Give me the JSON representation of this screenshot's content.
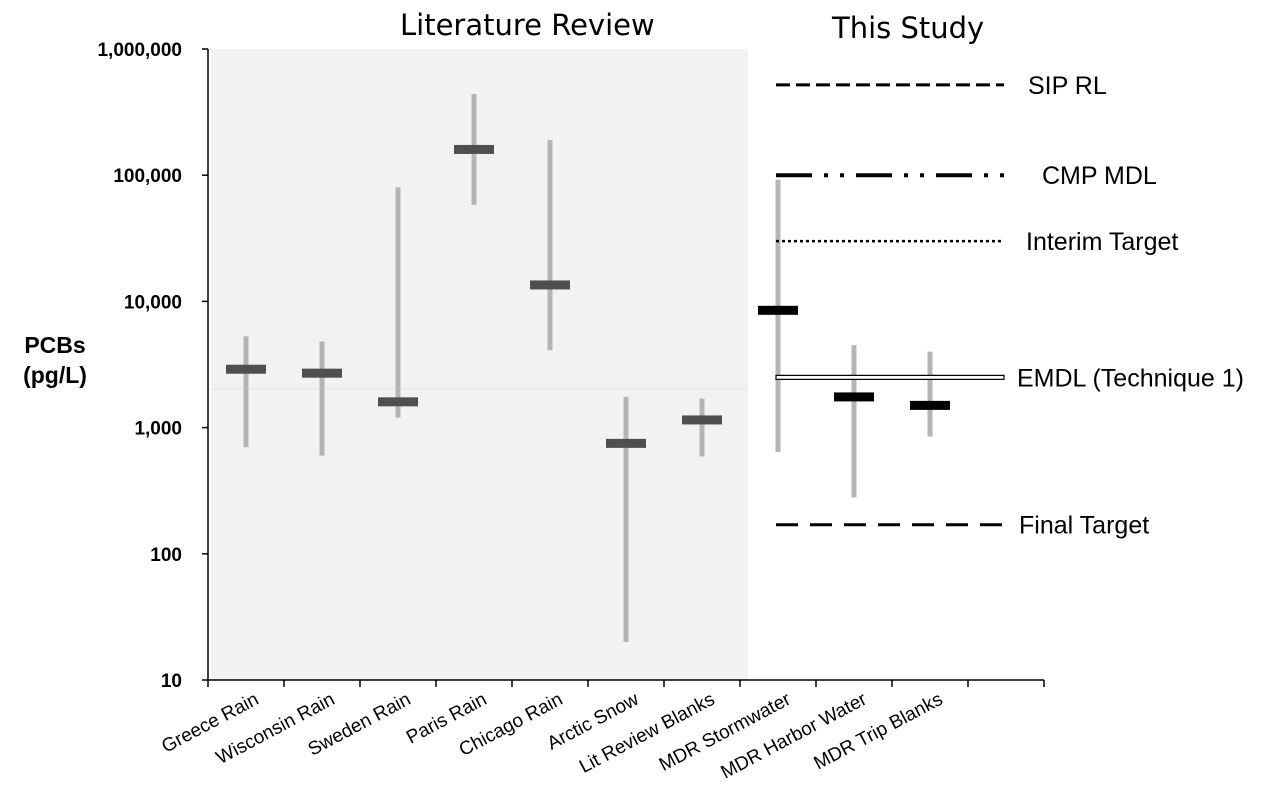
{
  "chart_data": {
    "type": "range",
    "scale": "log",
    "ylim": [
      10,
      1000000
    ],
    "yticks": [
      "10",
      "100",
      "1,000",
      "10,000",
      "100,000",
      "1,000,000"
    ],
    "ylabel_line1": "PCBs",
    "ylabel_line2": "(pg/L)",
    "section_titles": [
      "Literature Review",
      "This Study"
    ],
    "shaded_section": "Literature Review",
    "categories": [
      "Greece Rain",
      "Wisconsin Rain",
      "Sweden Rain",
      "Paris Rain",
      "Chicago Rain",
      "Arctic Snow",
      "Lit Review Blanks",
      "MDR Stormwater",
      "MDR Harbor Water",
      "MDR Trip Blanks"
    ],
    "series": [
      {
        "category": "Greece Rain",
        "min": 700,
        "median": 2900,
        "max": 5300,
        "group": "Literature Review"
      },
      {
        "category": "Wisconsin Rain",
        "min": 600,
        "median": 2700,
        "max": 4800,
        "group": "Literature Review"
      },
      {
        "category": "Sweden Rain",
        "min": 1200,
        "median": 1600,
        "max": 80000,
        "group": "Literature Review"
      },
      {
        "category": "Paris Rain",
        "min": 58000,
        "median": 160000,
        "max": 440000,
        "group": "Literature Review"
      },
      {
        "category": "Chicago Rain",
        "min": 4100,
        "median": 13500,
        "max": 190000,
        "group": "Literature Review"
      },
      {
        "category": "Arctic Snow",
        "min": 20,
        "median": 750,
        "max": 1750,
        "group": "Literature Review"
      },
      {
        "category": "Lit Review Blanks",
        "min": 590,
        "median": 1150,
        "max": 1700,
        "group": "Literature Review"
      },
      {
        "category": "MDR Stormwater",
        "min": 640,
        "median": 8500,
        "max": 92000,
        "group": "This Study"
      },
      {
        "category": "MDR Harbor Water",
        "min": 280,
        "median": 1750,
        "max": 4500,
        "group": "This Study"
      },
      {
        "category": "MDR Trip Blanks",
        "min": 850,
        "median": 1500,
        "max": 4000,
        "group": "This Study"
      }
    ],
    "reference_lines": [
      {
        "label": "SIP RL",
        "value": 520000,
        "style": "dashed"
      },
      {
        "label": "CMP MDL",
        "value": 100000,
        "style": "dash-dot-dot"
      },
      {
        "label": "Interim Target",
        "value": 30000,
        "style": "dotted"
      },
      {
        "label": "EMDL (Technique  1)",
        "value": 2500,
        "style": "double"
      },
      {
        "label": "Final Target",
        "value": 170,
        "style": "long-dash"
      }
    ],
    "colors": {
      "range_bar": "#b5b5b5",
      "median_lit": "#4f4f4f",
      "median_study": "#000000",
      "shade": "#f2f2f2",
      "axis": "#000000"
    },
    "grid": false,
    "legend": "none"
  }
}
